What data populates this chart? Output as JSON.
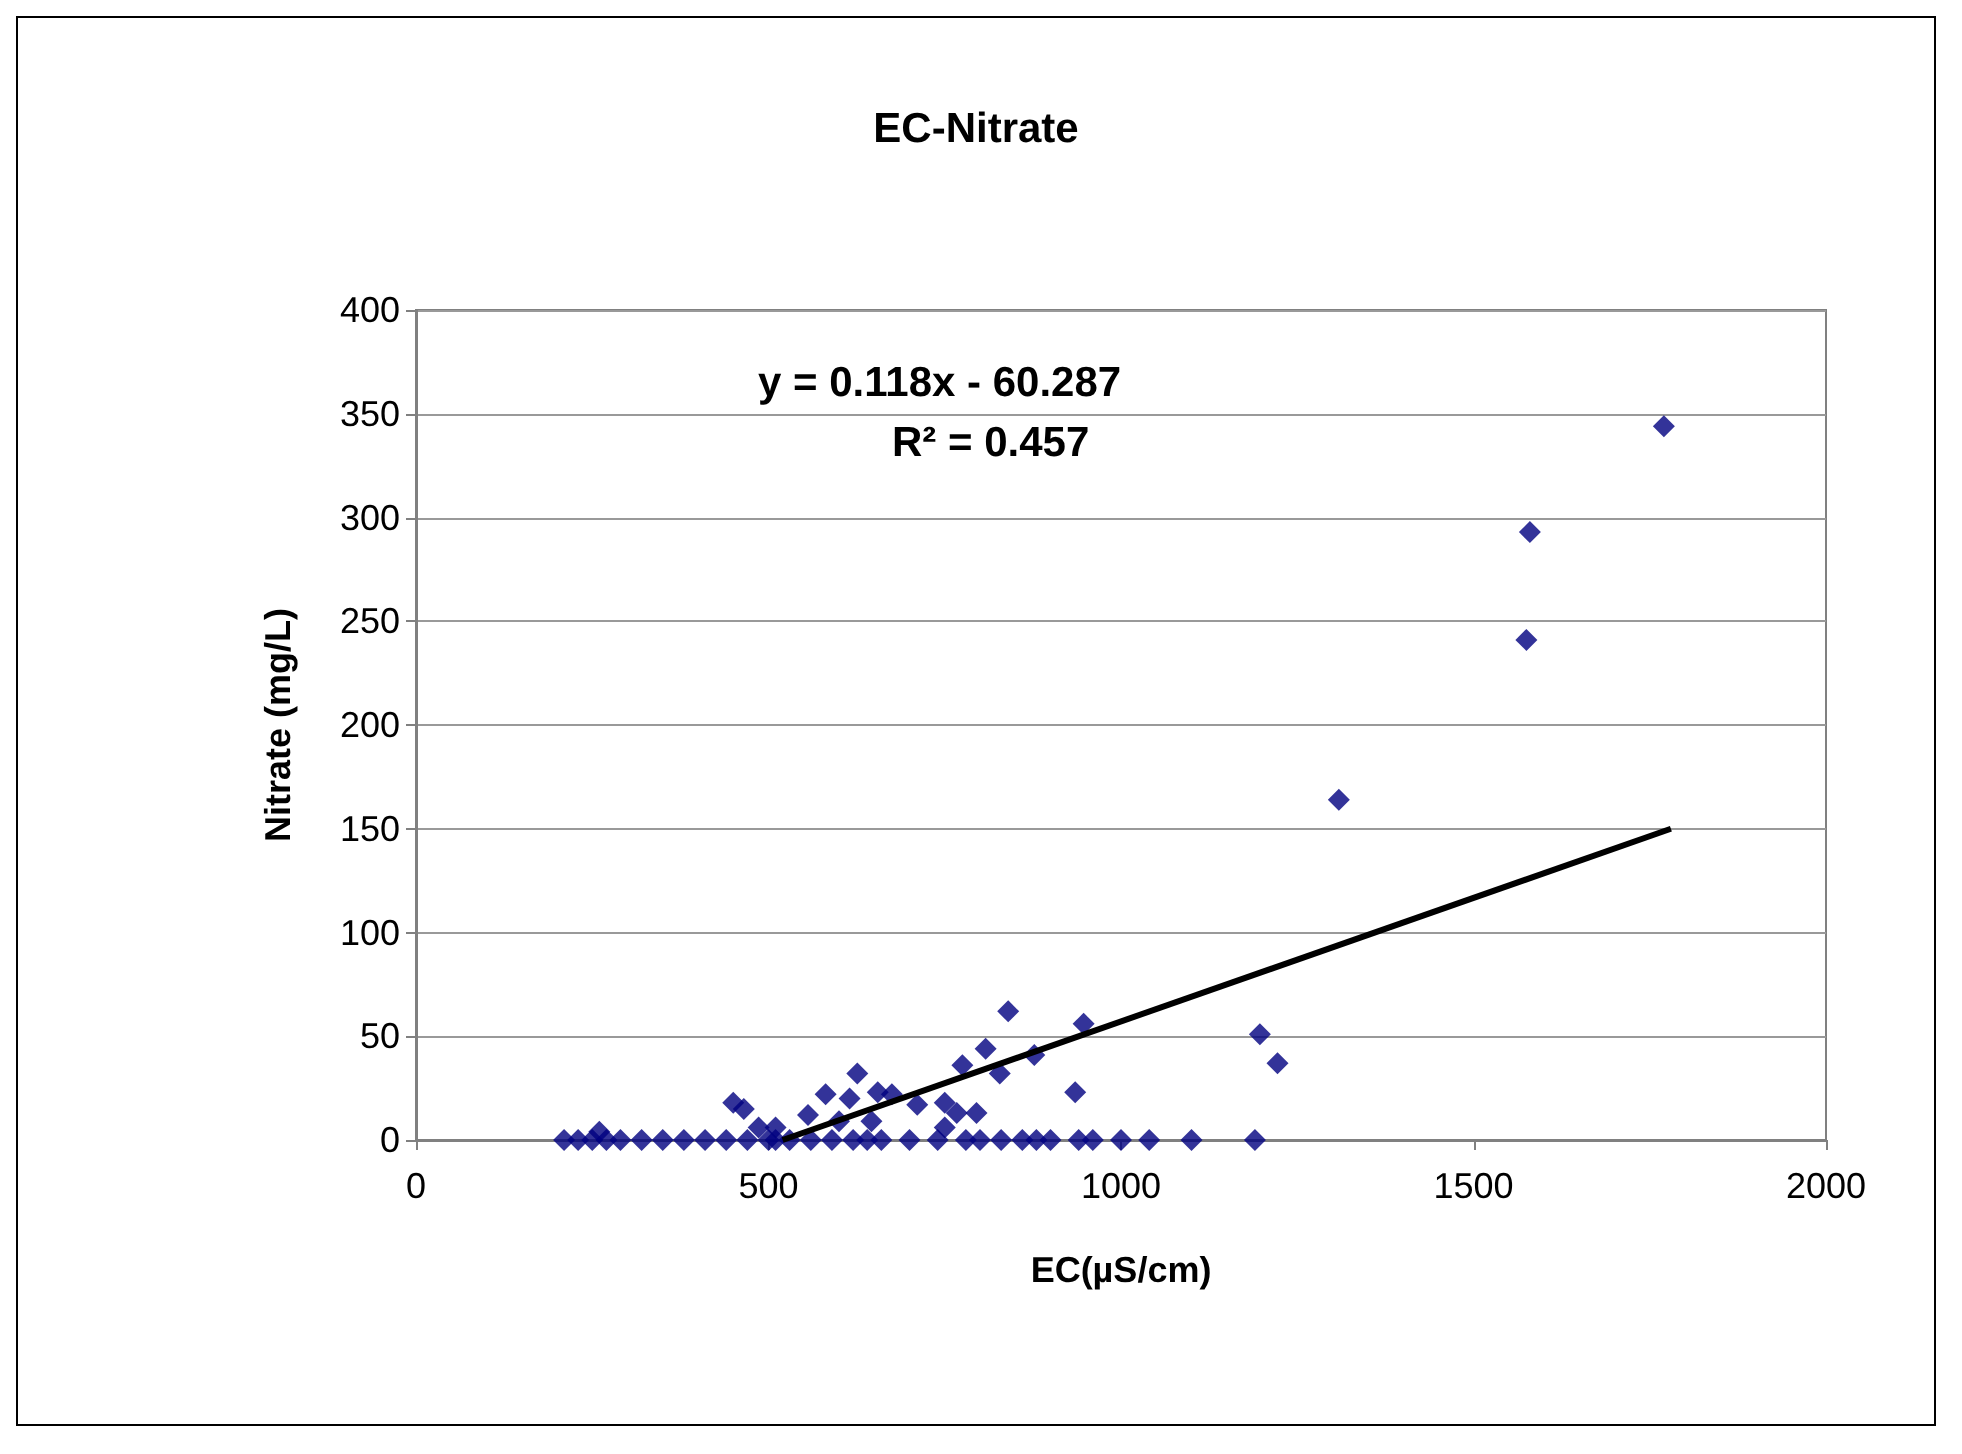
{
  "chart_data": {
    "type": "scatter",
    "title": "EC-Nitrate",
    "xlabel": "EC(µS/cm)",
    "ylabel": "Nitrate (mg/L)",
    "annotations": [
      "y = 0.118x - 60.287",
      "R² = 0.457"
    ],
    "xlim": [
      0,
      2000
    ],
    "xticks": [
      0,
      500,
      1000,
      1500,
      2000
    ],
    "ylim": [
      0,
      400
    ],
    "yticks": [
      0,
      50,
      100,
      150,
      200,
      250,
      300,
      350,
      400
    ],
    "grid": "y",
    "series": [
      {
        "color": "#000080",
        "marker": "diamond",
        "x": [
          210,
          230,
          250,
          270,
          290,
          320,
          350,
          380,
          410,
          440,
          470,
          500,
          510,
          530,
          560,
          590,
          620,
          640,
          660,
          700,
          740,
          780,
          800,
          830,
          860,
          880,
          900,
          940,
          960,
          1000,
          1040,
          1100,
          1190,
          840,
          947,
          808,
          877,
          626,
          775,
          581,
          450,
          465,
          935,
          655,
          675,
          615,
          556,
          711,
          750,
          767,
          795,
          750,
          646,
          600,
          486,
          510,
          260,
          828,
          1197,
          1222,
          1770,
          1580,
          1575,
          1309
        ],
        "values": [
          0,
          0,
          0,
          0,
          0,
          0,
          0,
          0,
          0,
          0,
          0,
          0,
          0,
          0,
          0,
          0,
          0,
          0,
          0,
          0,
          0,
          0,
          0,
          0,
          0,
          0,
          0,
          0,
          0,
          0,
          0,
          0,
          0,
          62,
          56,
          44,
          41,
          32,
          36,
          22,
          18,
          15,
          23,
          23,
          22,
          20,
          12,
          17,
          18,
          13,
          13,
          6,
          9,
          9,
          6,
          6,
          4,
          32,
          51,
          37,
          344,
          293,
          241,
          164
        ]
      },
      {
        "type": "line",
        "color": "#000000",
        "marker": "none",
        "x": [
          520,
          1780
        ],
        "values": [
          0,
          150
        ]
      }
    ]
  }
}
